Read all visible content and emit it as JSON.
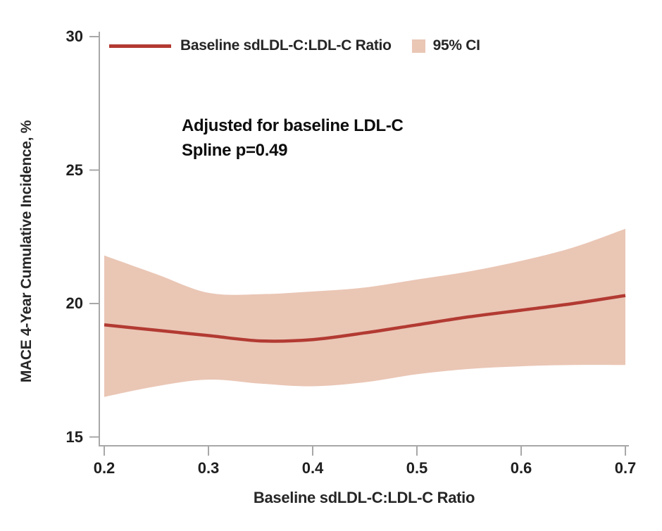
{
  "figure": {
    "y_axis_title": "MACE 4-Year Cumulative Incidence, %",
    "x_axis_title": "Baseline sdLDL-C:LDL-C Ratio",
    "legend": {
      "series_label": "Baseline sdLDL-C:LDL-C Ratio",
      "ci_label": "95% CI"
    },
    "annotation": {
      "line1": "Adjusted for baseline LDL-C",
      "line2": "Spline p=0.49"
    },
    "colors": {
      "line": "#b23a32",
      "band": "#eac6b5",
      "axis": "#a8a8a8",
      "text": "#262626"
    }
  },
  "chart_data": {
    "type": "line",
    "title": "",
    "xlabel": "Baseline sdLDL-C:LDL-C Ratio",
    "ylabel": "MACE 4-Year Cumulative Incidence, %",
    "xlim": [
      0.2,
      0.7
    ],
    "ylim": [
      15,
      30
    ],
    "x_ticks": [
      0.2,
      0.3,
      0.4,
      0.5,
      0.6,
      0.7
    ],
    "y_ticks": [
      30,
      25,
      20,
      15
    ],
    "grid": false,
    "legend_position": "top-left",
    "annotations": [
      "Adjusted for baseline LDL-C",
      "Spline p=0.49"
    ],
    "x": [
      0.2,
      0.25,
      0.3,
      0.35,
      0.4,
      0.45,
      0.5,
      0.55,
      0.6,
      0.65,
      0.7
    ],
    "series": [
      {
        "name": "Baseline sdLDL-C:LDL-C Ratio",
        "role": "estimate",
        "values": [
          19.2,
          19.0,
          18.8,
          18.6,
          18.65,
          18.9,
          19.2,
          19.5,
          19.75,
          20.0,
          20.3
        ]
      },
      {
        "name": "95% CI upper",
        "role": "ci-upper",
        "values": [
          21.8,
          21.1,
          20.4,
          20.35,
          20.45,
          20.6,
          20.9,
          21.2,
          21.6,
          22.1,
          22.8
        ]
      },
      {
        "name": "95% CI lower",
        "role": "ci-lower",
        "values": [
          16.5,
          16.9,
          17.15,
          17.0,
          16.9,
          17.05,
          17.35,
          17.55,
          17.65,
          17.7,
          17.7
        ]
      }
    ]
  }
}
